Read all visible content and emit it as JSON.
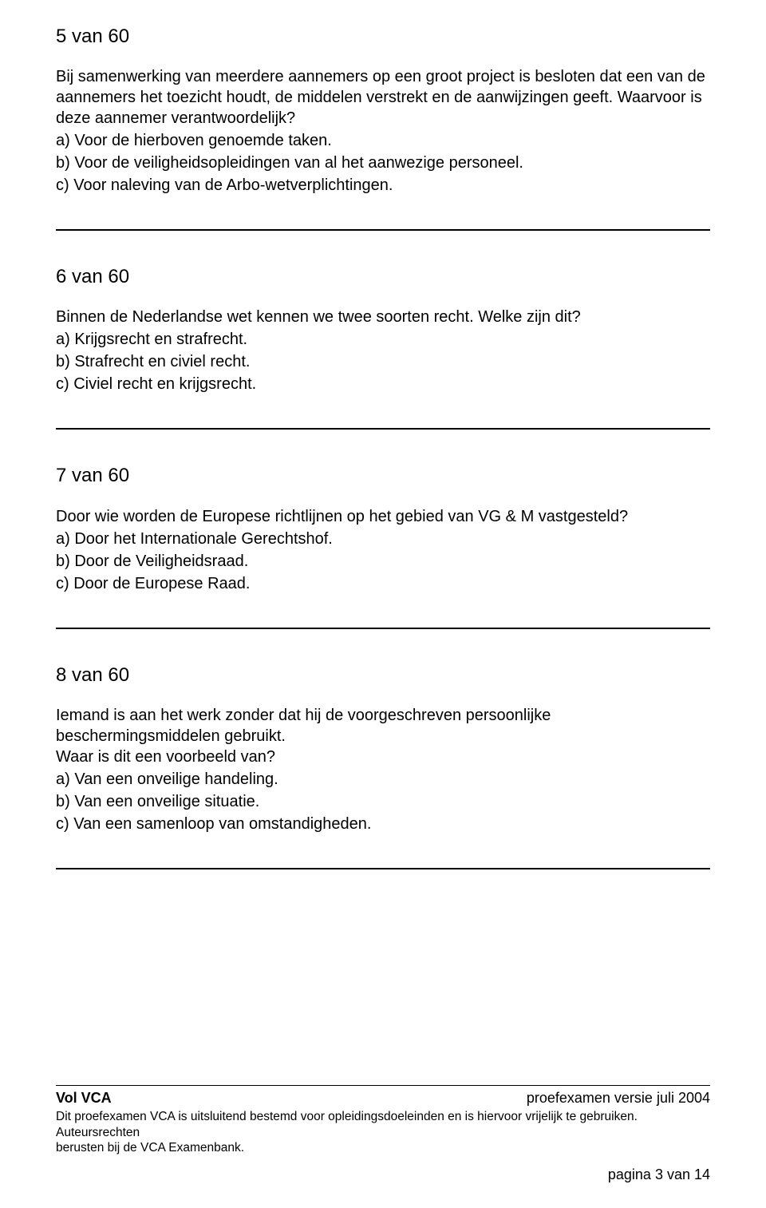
{
  "q5": {
    "number": "5 van 60",
    "text1": "Bij samenwerking van meerdere aannemers op een groot project is besloten dat een van de",
    "text2": "aannemers het toezicht houdt, de middelen verstrekt en de aanwijzingen geeft. Waarvoor is",
    "text3": "deze aannemer verantwoordelijk?",
    "a": "a) Voor de hierboven genoemde taken.",
    "b": "b) Voor de veiligheidsopleidingen van al het aanwezige personeel.",
    "c": "c) Voor naleving van de Arbo-wetverplichtingen."
  },
  "q6": {
    "number": "6 van 60",
    "text1": "Binnen de Nederlandse wet kennen we twee soorten recht. Welke zijn dit?",
    "a": "a) Krijgsrecht en strafrecht.",
    "b": "b) Strafrecht en civiel recht.",
    "c": "c) Civiel recht en krijgsrecht."
  },
  "q7": {
    "number": "7 van 60",
    "text1": "Door wie worden de Europese richtlijnen op het gebied van VG & M vastgesteld?",
    "a": "a) Door het Internationale Gerechtshof.",
    "b": "b) Door de Veiligheidsraad.",
    "c": "c) Door de Europese Raad."
  },
  "q8": {
    "number": "8 van 60",
    "text1": "Iemand is aan het werk zonder dat hij de voorgeschreven persoonlijke",
    "text2": "beschermingsmiddelen gebruikt.",
    "text3": "Waar is dit een voorbeeld van?",
    "a": "a) Van een onveilige handeling.",
    "b": "b) Van een onveilige situatie.",
    "c": "c) Van een samenloop van omstandigheden."
  },
  "footer": {
    "left": "Vol VCA",
    "right": "proefexamen versie juli 2004",
    "disclaimer1": "Dit proefexamen VCA is uitsluitend bestemd voor opleidingsdoeleinden en is hiervoor vrijelijk te gebruiken. Auteursrechten",
    "disclaimer2": "berusten bij de VCA Examenbank.",
    "pagenum": "pagina 3 van 14"
  }
}
